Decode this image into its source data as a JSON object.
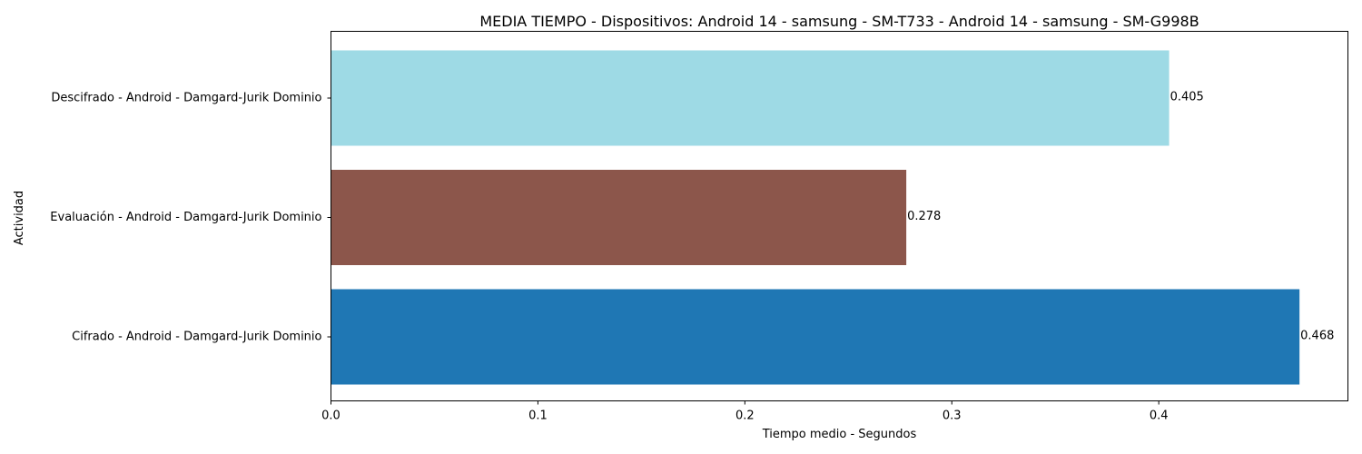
{
  "chart_data": {
    "type": "bar",
    "orientation": "horizontal",
    "title": "MEDIA TIEMPO - Dispositivos: Android 14 - samsung - SM-T733 - Android 14 - samsung - SM-G998B",
    "xlabel": "Tiempo medio - Segundos",
    "ylabel": "Actividad",
    "categories": [
      "Cifrado - Android - Damgard-Jurik Dominio",
      "Evaluación - Android - Damgard-Jurik Dominio",
      "Descifrado - Android - Damgard-Jurik Dominio"
    ],
    "values": [
      0.468,
      0.278,
      0.405
    ],
    "value_labels": [
      "0.468",
      "0.278",
      "0.405"
    ],
    "colors": [
      "#1f77b4",
      "#8c564b",
      "#9edae5"
    ],
    "xlim": [
      0,
      0.4914
    ],
    "xticks": [
      0.0,
      0.1,
      0.2,
      0.3,
      0.4
    ],
    "xtick_labels": [
      "0.0",
      "0.1",
      "0.2",
      "0.3",
      "0.4"
    ],
    "grid": false,
    "legend": "none"
  }
}
